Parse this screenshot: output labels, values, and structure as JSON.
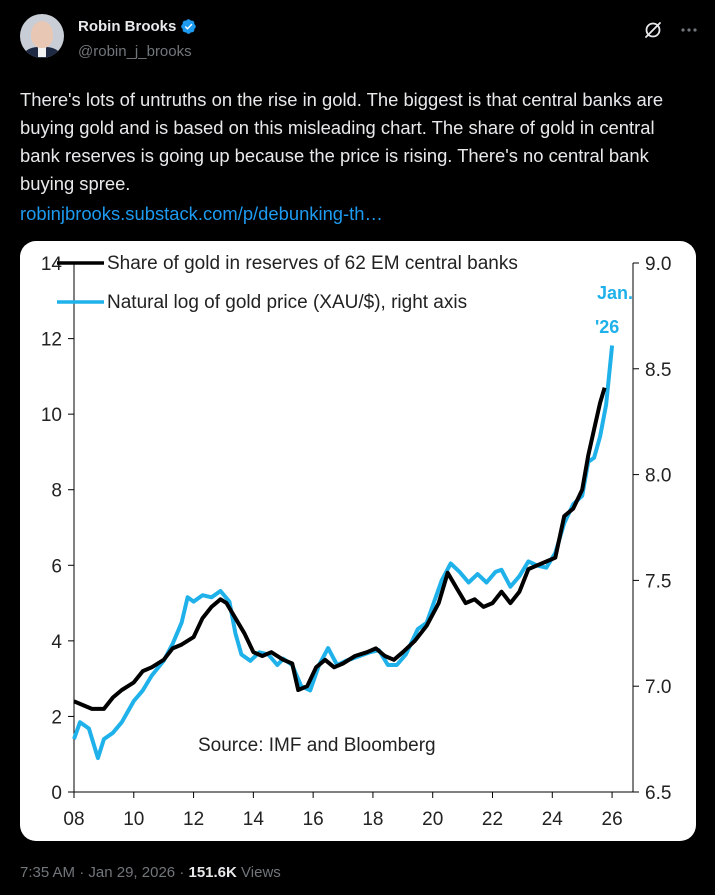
{
  "header": {
    "display_name": "Robin Brooks",
    "handle": "@robin_j_brooks"
  },
  "tweet": {
    "text": "There's lots of untruths on the rise in gold. The biggest is that central banks are buying gold and is based on this misleading chart. The share of gold in central bank reserves is going up because the price is rising. There's no central bank buying spree.",
    "link": "robinjbrooks.substack.com/p/debunking-th…"
  },
  "meta": {
    "time": "7:35 AM",
    "sep1": "·",
    "date": "Jan 29, 2026",
    "sep2": "·",
    "views_count": "151.6K",
    "views_label": "Views"
  },
  "colors": {
    "black_series": "#000000",
    "blue_series": "#1fb1ea",
    "link": "#1d9bf0"
  },
  "chart_data": {
    "type": "line",
    "legend": [
      "Share of gold in reserves of 62 EM central banks",
      "Natural log of gold price (XAU/$), right axis"
    ],
    "source": "Source: IMF and Bloomberg",
    "annotation": [
      "Jan.",
      "'26"
    ],
    "x_ticks": [
      "08",
      "10",
      "12",
      "14",
      "16",
      "18",
      "20",
      "22",
      "24",
      "26"
    ],
    "xlim": [
      2008,
      2026.7
    ],
    "y_left": {
      "ticks": [
        "0",
        "2",
        "4",
        "6",
        "8",
        "10",
        "12",
        "14"
      ],
      "ylim": [
        0,
        14
      ]
    },
    "y_right": {
      "ticks": [
        "6.5",
        "7.0",
        "7.5",
        "8.0",
        "8.5",
        "9.0"
      ],
      "ylim": [
        6.5,
        9.0
      ]
    },
    "series": [
      {
        "name": "Share of gold in reserves of 62 EM central banks",
        "axis": "left",
        "points": [
          [
            2008.0,
            2.4
          ],
          [
            2008.3,
            2.3
          ],
          [
            2008.6,
            2.2
          ],
          [
            2009.0,
            2.2
          ],
          [
            2009.3,
            2.5
          ],
          [
            2009.6,
            2.7
          ],
          [
            2010.0,
            2.9
          ],
          [
            2010.3,
            3.2
          ],
          [
            2010.6,
            3.3
          ],
          [
            2011.0,
            3.5
          ],
          [
            2011.3,
            3.8
          ],
          [
            2011.6,
            3.9
          ],
          [
            2012.0,
            4.1
          ],
          [
            2012.3,
            4.6
          ],
          [
            2012.6,
            4.9
          ],
          [
            2012.9,
            5.1
          ],
          [
            2013.1,
            5.0
          ],
          [
            2013.4,
            4.6
          ],
          [
            2013.7,
            4.2
          ],
          [
            2014.0,
            3.7
          ],
          [
            2014.3,
            3.6
          ],
          [
            2014.6,
            3.7
          ],
          [
            2015.0,
            3.5
          ],
          [
            2015.3,
            3.4
          ],
          [
            2015.5,
            2.7
          ],
          [
            2015.8,
            2.8
          ],
          [
            2016.1,
            3.3
          ],
          [
            2016.4,
            3.5
          ],
          [
            2016.7,
            3.3
          ],
          [
            2017.0,
            3.4
          ],
          [
            2017.4,
            3.6
          ],
          [
            2017.8,
            3.7
          ],
          [
            2018.1,
            3.8
          ],
          [
            2018.4,
            3.6
          ],
          [
            2018.7,
            3.5
          ],
          [
            2019.0,
            3.7
          ],
          [
            2019.4,
            4.0
          ],
          [
            2019.8,
            4.4
          ],
          [
            2020.2,
            5.0
          ],
          [
            2020.5,
            5.8
          ],
          [
            2020.8,
            5.4
          ],
          [
            2021.1,
            5.0
          ],
          [
            2021.4,
            5.1
          ],
          [
            2021.7,
            4.9
          ],
          [
            2022.0,
            5.0
          ],
          [
            2022.3,
            5.3
          ],
          [
            2022.6,
            5.0
          ],
          [
            2022.9,
            5.3
          ],
          [
            2023.2,
            5.9
          ],
          [
            2023.5,
            6.0
          ],
          [
            2023.8,
            6.1
          ],
          [
            2024.1,
            6.2
          ],
          [
            2024.4,
            7.3
          ],
          [
            2024.7,
            7.5
          ],
          [
            2025.0,
            8.0
          ],
          [
            2025.2,
            8.9
          ],
          [
            2025.4,
            9.6
          ],
          [
            2025.6,
            10.3
          ],
          [
            2025.75,
            10.7
          ]
        ]
      },
      {
        "name": "Natural log of gold price (XAU/$), right axis",
        "axis": "right",
        "points": [
          [
            2008.0,
            6.75
          ],
          [
            2008.2,
            6.83
          ],
          [
            2008.5,
            6.8
          ],
          [
            2008.8,
            6.66
          ],
          [
            2009.0,
            6.75
          ],
          [
            2009.3,
            6.78
          ],
          [
            2009.6,
            6.83
          ],
          [
            2010.0,
            6.93
          ],
          [
            2010.3,
            6.98
          ],
          [
            2010.6,
            7.05
          ],
          [
            2011.0,
            7.12
          ],
          [
            2011.3,
            7.2
          ],
          [
            2011.6,
            7.3
          ],
          [
            2011.8,
            7.42
          ],
          [
            2012.0,
            7.4
          ],
          [
            2012.3,
            7.43
          ],
          [
            2012.6,
            7.42
          ],
          [
            2012.9,
            7.45
          ],
          [
            2013.2,
            7.4
          ],
          [
            2013.4,
            7.25
          ],
          [
            2013.6,
            7.15
          ],
          [
            2013.9,
            7.12
          ],
          [
            2014.2,
            7.16
          ],
          [
            2014.5,
            7.15
          ],
          [
            2014.8,
            7.1
          ],
          [
            2015.0,
            7.13
          ],
          [
            2015.3,
            7.1
          ],
          [
            2015.6,
            7.0
          ],
          [
            2015.9,
            6.98
          ],
          [
            2016.2,
            7.1
          ],
          [
            2016.5,
            7.18
          ],
          [
            2016.8,
            7.1
          ],
          [
            2017.1,
            7.12
          ],
          [
            2017.5,
            7.14
          ],
          [
            2017.9,
            7.16
          ],
          [
            2018.2,
            7.17
          ],
          [
            2018.5,
            7.1
          ],
          [
            2018.8,
            7.1
          ],
          [
            2019.1,
            7.15
          ],
          [
            2019.5,
            7.27
          ],
          [
            2019.8,
            7.3
          ],
          [
            2020.0,
            7.38
          ],
          [
            2020.3,
            7.5
          ],
          [
            2020.6,
            7.58
          ],
          [
            2020.9,
            7.54
          ],
          [
            2021.2,
            7.49
          ],
          [
            2021.5,
            7.53
          ],
          [
            2021.8,
            7.49
          ],
          [
            2022.1,
            7.54
          ],
          [
            2022.3,
            7.55
          ],
          [
            2022.6,
            7.47
          ],
          [
            2022.9,
            7.52
          ],
          [
            2023.2,
            7.59
          ],
          [
            2023.5,
            7.57
          ],
          [
            2023.8,
            7.56
          ],
          [
            2024.1,
            7.63
          ],
          [
            2024.4,
            7.77
          ],
          [
            2024.7,
            7.86
          ],
          [
            2025.0,
            7.9
          ],
          [
            2025.2,
            8.06
          ],
          [
            2025.4,
            8.08
          ],
          [
            2025.6,
            8.18
          ],
          [
            2025.8,
            8.33
          ],
          [
            2026.0,
            8.61
          ]
        ]
      }
    ]
  }
}
